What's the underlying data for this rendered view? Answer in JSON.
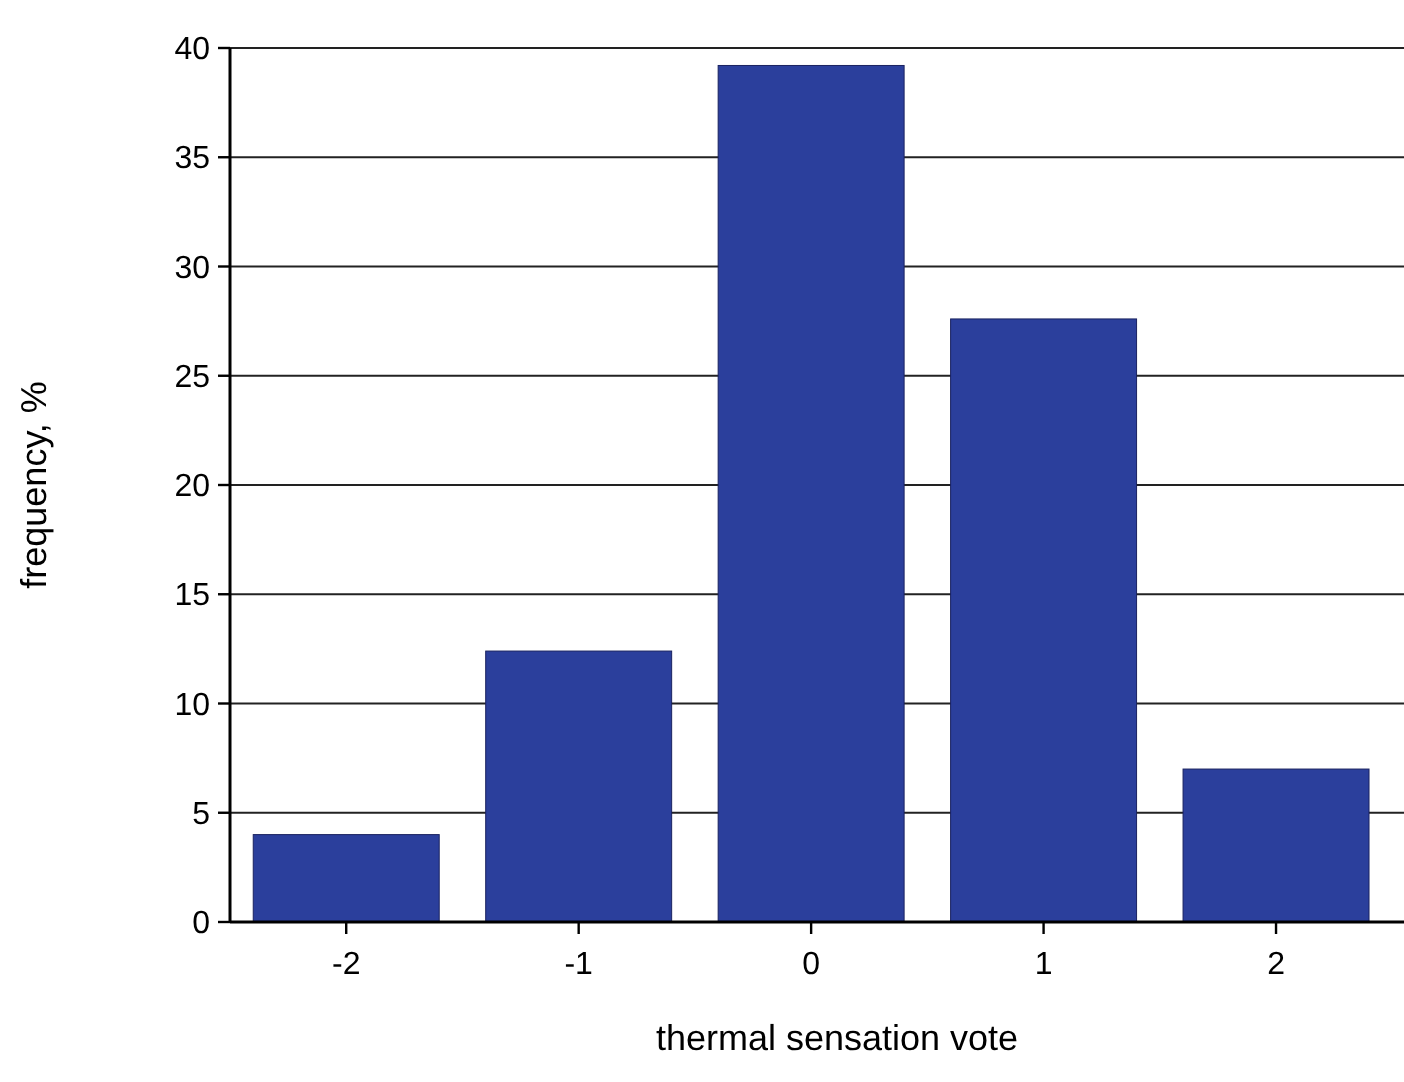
{
  "chart_data": {
    "type": "bar",
    "xlabel": "thermal sensation vote",
    "ylabel": "frequency, %",
    "categories": [
      "-2",
      "-1",
      "0",
      "1",
      "2"
    ],
    "values": [
      4,
      12.4,
      39.2,
      27.6,
      7
    ],
    "color": "#2b3f9c",
    "ylim": [
      0,
      40
    ],
    "yticks": [
      0,
      5,
      10,
      15,
      20,
      25,
      30,
      35,
      40
    ],
    "grid": "y"
  }
}
